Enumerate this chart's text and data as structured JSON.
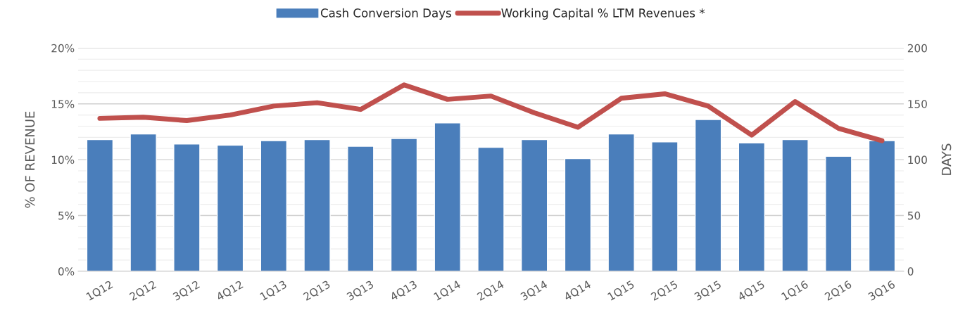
{
  "chart_data": {
    "type": "bar",
    "categories": [
      "1Q12",
      "2Q12",
      "3Q12",
      "4Q12",
      "1Q13",
      "2Q13",
      "3Q13",
      "4Q13",
      "1Q14",
      "2Q14",
      "3Q14",
      "4Q14",
      "1Q15",
      "2Q15",
      "3Q15",
      "4Q15",
      "1Q16",
      "2Q16",
      "3Q16"
    ],
    "series": [
      {
        "name": "Cash Conversion Days",
        "axis": "y2",
        "color": "#4a7ebb",
        "values": [
          118,
          123,
          114,
          113,
          117,
          118,
          112,
          119,
          133,
          111,
          118,
          101,
          123,
          116,
          136,
          115,
          118,
          103,
          117
        ]
      },
      {
        "name": "Working Capital % LTM Revenues *",
        "type": "line",
        "axis": "y",
        "color": "#c0504d",
        "values": [
          13.7,
          13.8,
          13.5,
          14.0,
          14.8,
          15.1,
          14.5,
          16.7,
          15.4,
          15.7,
          14.2,
          12.9,
          15.5,
          15.9,
          14.8,
          12.2,
          15.2,
          12.8,
          11.7
        ]
      }
    ],
    "ylabel": "% OF REVENUE",
    "y2label": "DAYS",
    "ylim": [
      0,
      20
    ],
    "yticks": [
      {
        "value": 0,
        "label": "0%"
      },
      {
        "value": 5,
        "label": "5%"
      },
      {
        "value": 10,
        "label": "10%"
      },
      {
        "value": 15,
        "label": "15%"
      },
      {
        "value": 20,
        "label": "20%"
      }
    ],
    "y2lim": [
      0,
      200
    ],
    "y2ticks": [
      0,
      50,
      100,
      150,
      200
    ],
    "grid": "y",
    "legend": "top",
    "marker": "none",
    "line_style": "solid"
  }
}
